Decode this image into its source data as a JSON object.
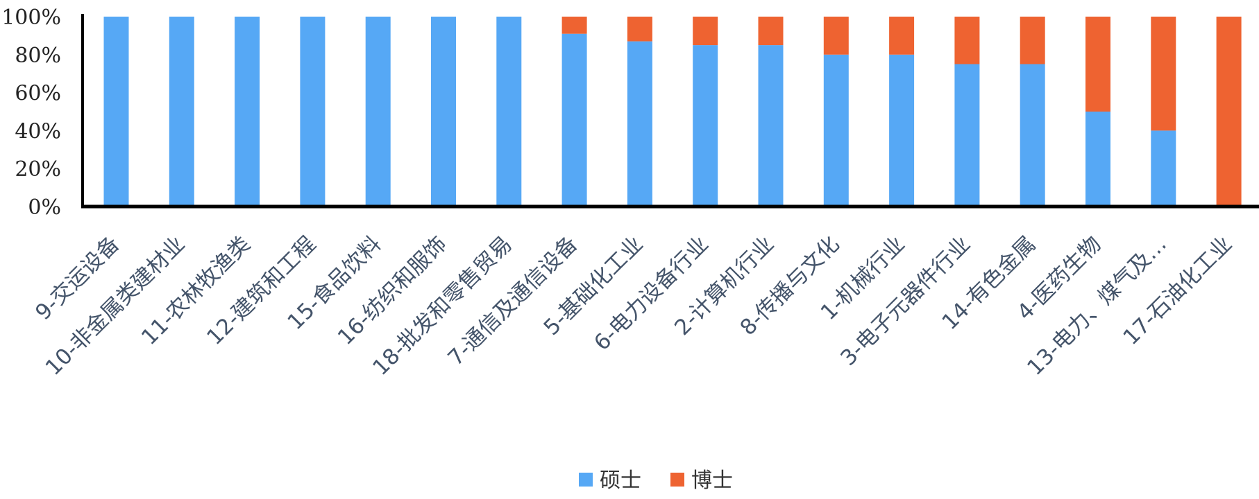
{
  "chart_data": {
    "type": "bar",
    "stacked": true,
    "percent": true,
    "categories": [
      "9-交运设备",
      "10-非金属类建材业",
      "11-农林牧渔类",
      "12-建筑和工程",
      "15-食品饮料",
      "16-纺织和服饰",
      "18-批发和零售贸易",
      "7-通信及通信设备",
      "5-基础化工业",
      "6-电力设备行业",
      "2-计算机行业",
      "8-传播与文化",
      "1-机械行业",
      "3-电子元器件行业",
      "14-有色金属",
      "4-医药生物",
      "13-电力、煤气及…",
      "17-石油化工业"
    ],
    "series": [
      {
        "name": "硕士",
        "color": "#56a8f5",
        "values": [
          100,
          100,
          100,
          100,
          100,
          100,
          100,
          91,
          87,
          85,
          85,
          80,
          80,
          75,
          75,
          50,
          40,
          0
        ]
      },
      {
        "name": "博士",
        "color": "#ee6331",
        "values": [
          0,
          0,
          0,
          0,
          0,
          0,
          0,
          9,
          13,
          15,
          15,
          20,
          20,
          25,
          25,
          50,
          60,
          100
        ]
      }
    ],
    "y_ticks": [
      "0%",
      "20%",
      "40%",
      "60%",
      "80%",
      "100%"
    ],
    "ylim": [
      0,
      100
    ],
    "grid": false,
    "legend_position": "bottom-center",
    "title": "",
    "xlabel": "",
    "ylabel": ""
  }
}
